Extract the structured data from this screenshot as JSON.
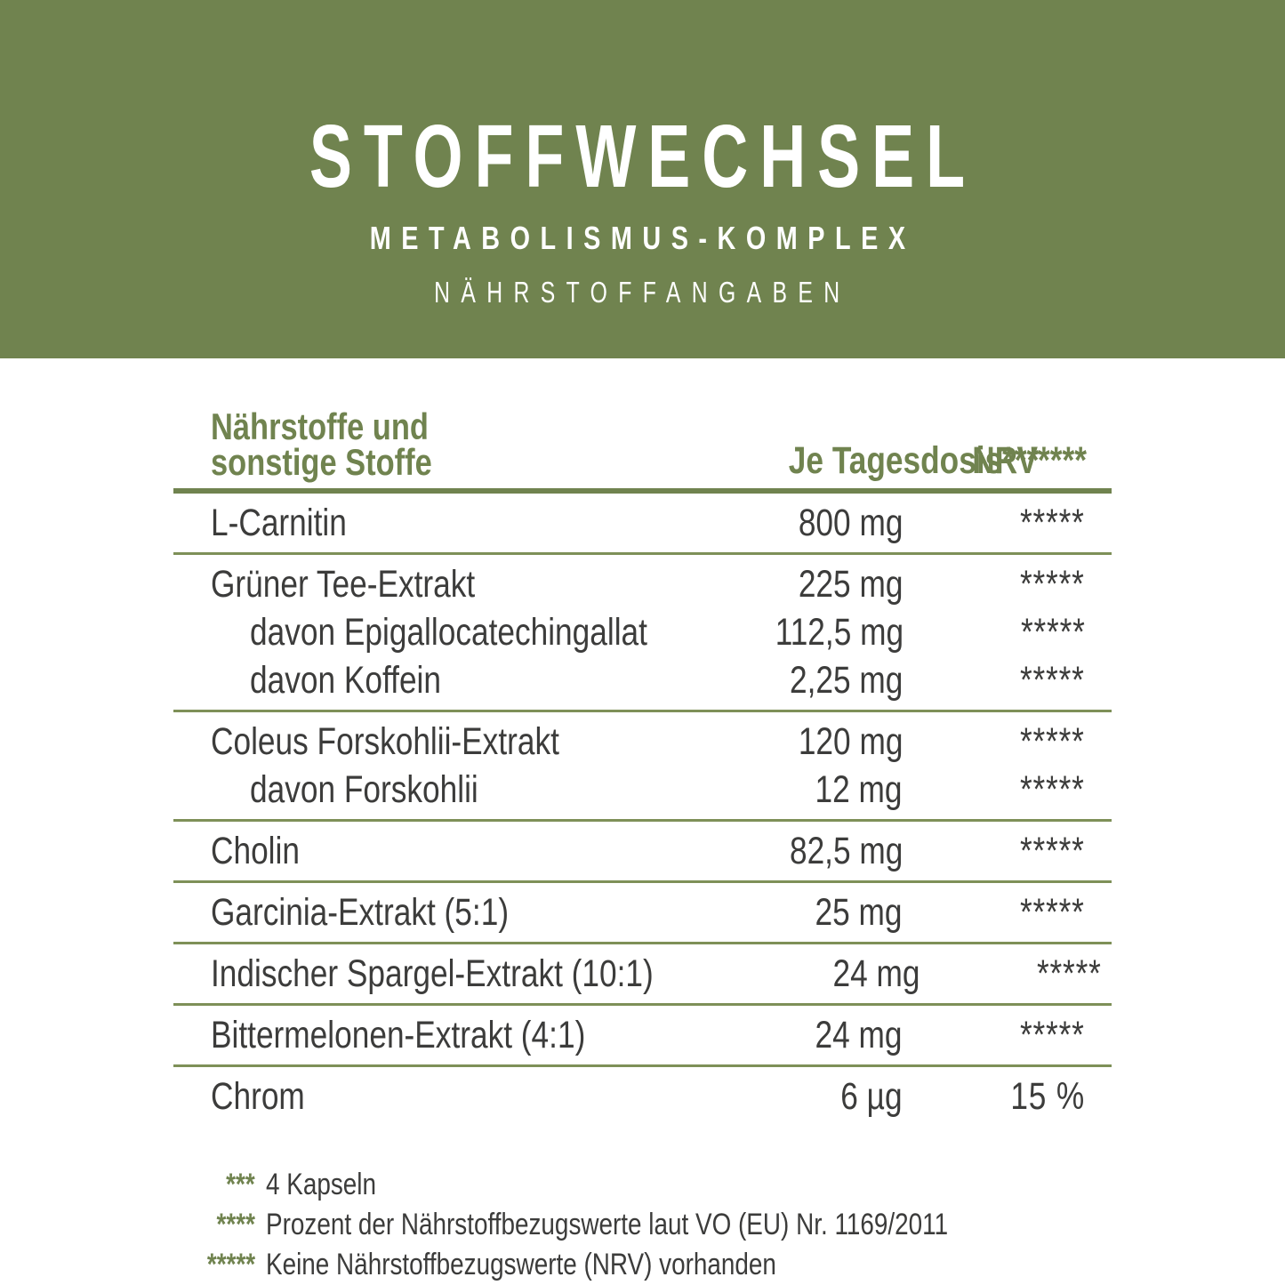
{
  "header": {
    "title": "STOFFWECHSEL",
    "subtitle": "METABOLISMUS-KOMPLEX",
    "section_label": "NÄHRSTOFFANGABEN"
  },
  "table": {
    "col_nutrient_line1": "Nährstoffe und",
    "col_nutrient_line2": "sonstige Stoffe",
    "col_dose": "Je Tagesdosis***",
    "col_nrv": "NRV****",
    "groups": [
      {
        "rows": [
          {
            "name": "L-Carnitin",
            "sub": false,
            "amount": "800 mg",
            "nrv": "*****"
          }
        ]
      },
      {
        "rows": [
          {
            "name": "Grüner Tee-Extrakt",
            "sub": false,
            "amount": "225 mg",
            "nrv": "*****"
          },
          {
            "name": "davon Epigallocatechingallat",
            "sub": true,
            "amount": "112,5 mg",
            "nrv": "*****"
          },
          {
            "name": "davon Koffein",
            "sub": true,
            "amount": "2,25 mg",
            "nrv": "*****"
          }
        ]
      },
      {
        "rows": [
          {
            "name": "Coleus Forskohlii-Extrakt",
            "sub": false,
            "amount": "120 mg",
            "nrv": "*****"
          },
          {
            "name": "davon Forskohlii",
            "sub": true,
            "amount": "12 mg",
            "nrv": "*****"
          }
        ]
      },
      {
        "rows": [
          {
            "name": "Cholin",
            "sub": false,
            "amount": "82,5 mg",
            "nrv": "*****"
          }
        ]
      },
      {
        "rows": [
          {
            "name": "Garcinia-Extrakt (5:1)",
            "sub": false,
            "amount": "25 mg",
            "nrv": "*****"
          }
        ]
      },
      {
        "rows": [
          {
            "name": "Indischer Spargel-Extrakt (10:1)",
            "sub": false,
            "amount": "24 mg",
            "nrv": "*****"
          }
        ]
      },
      {
        "rows": [
          {
            "name": "Bittermelonen-Extrakt (4:1)",
            "sub": false,
            "amount": "24 mg",
            "nrv": "*****"
          }
        ]
      },
      {
        "rows": [
          {
            "name": "Chrom",
            "sub": false,
            "amount": "6 µg",
            "nrv": "15 %"
          }
        ]
      }
    ]
  },
  "footnotes": [
    {
      "mark": "***",
      "text": "4 Kapseln"
    },
    {
      "mark": "****",
      "text": "Prozent der Nährstoffbezugswerte laut VO (EU) Nr. 1169/2011"
    },
    {
      "mark": "*****",
      "text": "Keine Nährstoffbezugswerte (NRV) vorhanden"
    }
  ],
  "colors": {
    "band_green": "#70834F",
    "separator_green": "#7E9058",
    "text_dark": "#3C3C3B",
    "text_white": "#FFFFFF"
  }
}
